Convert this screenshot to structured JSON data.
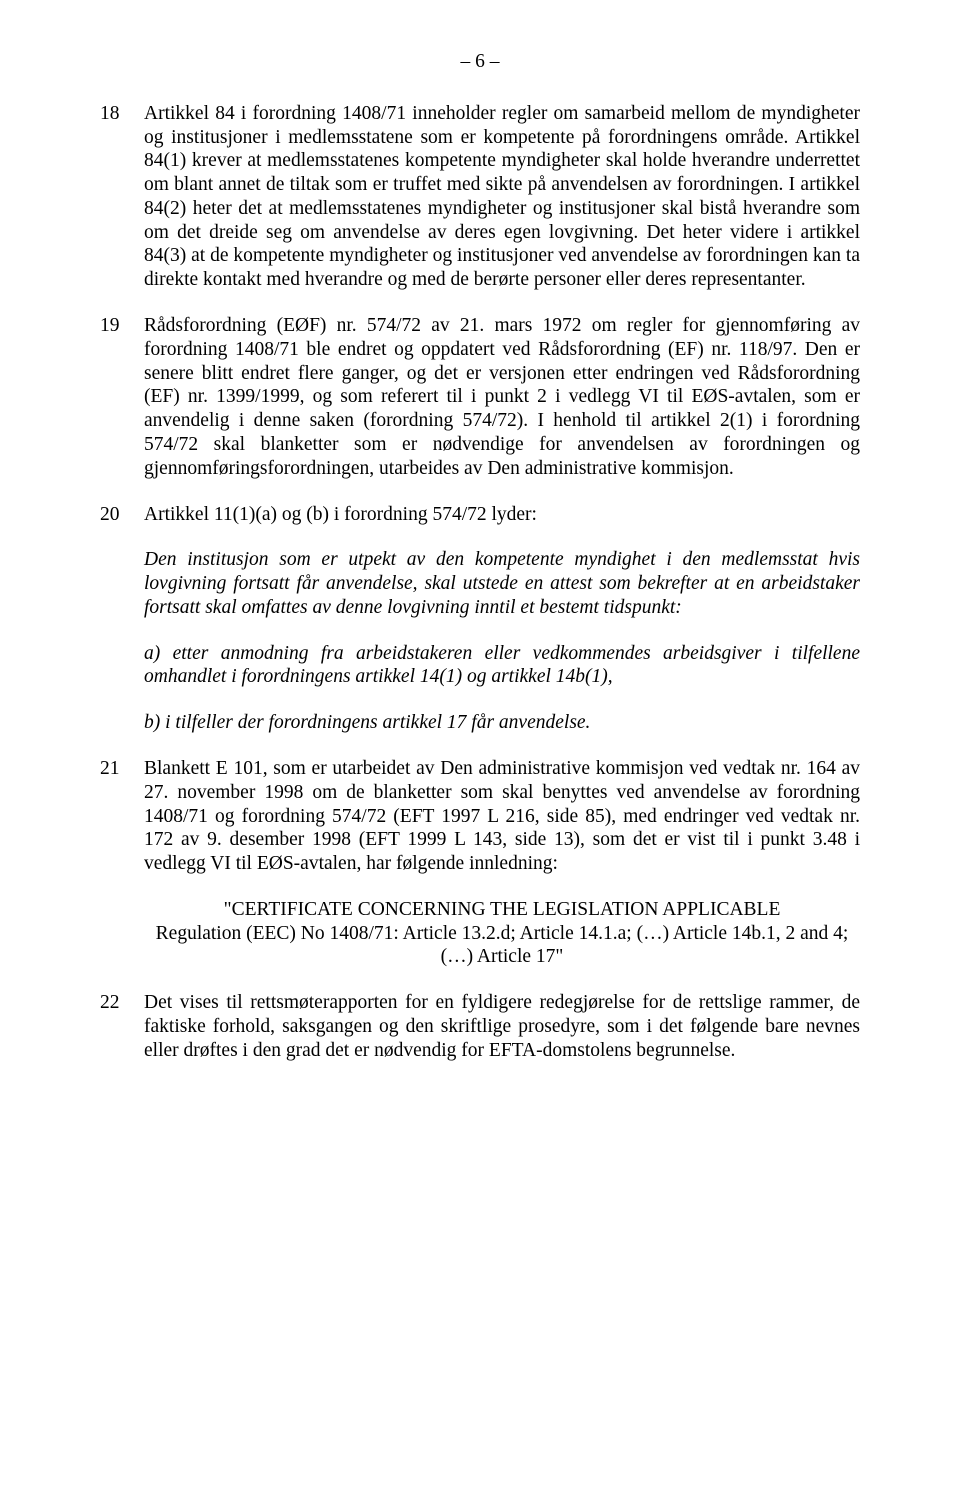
{
  "page_number_line": "– 6 –",
  "paragraphs": [
    {
      "num": "18",
      "text": "Artikkel 84 i forordning 1408/71 inneholder regler om samarbeid mellom de myndigheter og institusjoner i medlemsstatene som er kompetente på forordningens område. Artikkel 84(1) krever at medlemsstatenes kompetente myndigheter skal holde hverandre underrettet om blant annet de tiltak som er truffet med sikte på anvendelsen av forordningen. I artikkel 84(2) heter det at medlemsstatenes myndigheter og institusjoner skal bistå hverandre som om det dreide seg om anvendelse av deres egen lovgivning. Det heter videre i artikkel 84(3) at de kompetente myndigheter og institusjoner ved anvendelse av forordningen kan ta direkte kontakt med hverandre og med de berørte personer eller deres representanter."
    },
    {
      "num": "19",
      "text": "Rådsforordning (EØF) nr. 574/72 av 21. mars 1972 om regler for gjennomføring av forordning 1408/71 ble endret og oppdatert ved Rådsforordning (EF) nr. 118/97. Den er senere blitt endret flere ganger, og det er versjonen etter endringen ved Rådsforordning (EF) nr. 1399/1999, og som referert til i punkt 2 i vedlegg VI til EØS-avtalen, som er anvendelig i denne saken (forordning 574/72). I henhold til artikkel 2(1) i forordning 574/72 skal blanketter som er nødvendige for anvendelsen av forordningen og gjennomføringsforordningen, utarbeides av Den administrative kommisjon."
    },
    {
      "num": "20",
      "text": "Artikkel 11(1)(a) og (b) i forordning 574/72 lyder:"
    }
  ],
  "quote20": {
    "p1": "Den institusjon som er utpekt av den kompetente myndighet i den medlemsstat hvis lovgivning fortsatt får anvendelse, skal utstede en attest som bekrefter at en arbeidstaker fortsatt skal omfattes av denne lovgivning inntil et bestemt tidspunkt:",
    "p2": "a) etter anmodning fra arbeidstakeren eller vedkommendes arbeidsgiver i tilfellene omhandlet i forordningens artikkel 14(1) og artikkel 14b(1),",
    "p3": "b) i tilfeller der forordningens artikkel 17 får anvendelse."
  },
  "paragraph21": {
    "num": "21",
    "text": "Blankett E 101, som er utarbeidet av Den administrative kommisjon ved vedtak nr. 164 av 27. november 1998 om de blanketter som skal benyttes ved anvendelse av forordning 1408/71 og forordning 574/72 (EFT 1997 L 216, side 85), med endringer ved vedtak nr. 172 av 9. desember 1998 (EFT 1999 L 143, side 13), som det er vist til i punkt 3.48 i vedlegg VI til EØS-avtalen, har følgende innledning:"
  },
  "cert_block": {
    "line1": "\"CERTIFICATE CONCERNING THE LEGISLATION APPLICABLE",
    "line2": "Regulation (EEC) No 1408/71: Article 13.2.d; Article 14.1.a; (…) Article 14b.1, 2 and 4; (…) Article 17\""
  },
  "paragraph22": {
    "num": "22",
    "text": "Det vises til rettsmøterapporten for en fyldigere redegjørelse for de rettslige rammer, de faktiske forhold, saksgangen og den skriftlige prosedyre, som i det følgende bare nevnes eller drøftes i den grad det er nødvendig for EFTA-domstolens begrunnelse."
  }
}
